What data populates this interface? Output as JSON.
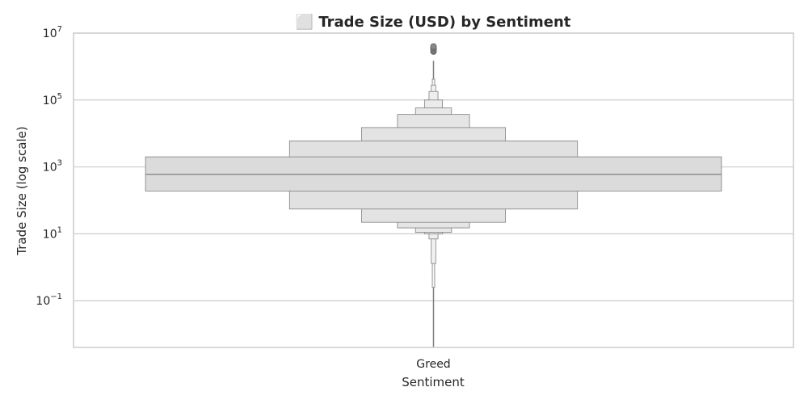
{
  "chart_data": {
    "type": "boxen",
    "title": "⬜ Trade Size (USD) by Sentiment",
    "xlabel": "Sentiment",
    "ylabel": "Trade Size (log scale)",
    "yscale": "log",
    "ylim": [
      0.004,
      10000000
    ],
    "yticks": [
      {
        "value": 0.1,
        "base": "10",
        "exp": "−1"
      },
      {
        "value": 10,
        "base": "10",
        "exp": "1"
      },
      {
        "value": 1000,
        "base": "10",
        "exp": "3"
      },
      {
        "value": 100000,
        "base": "10",
        "exp": "5"
      },
      {
        "value": 10000000,
        "base": "10",
        "exp": "7"
      }
    ],
    "grid": true,
    "categories": [
      "Greed"
    ],
    "series": [
      {
        "category": "Greed",
        "median": 600,
        "boxes": [
          {
            "lo": 190,
            "hi": 2000,
            "width": 0.8,
            "fill": "#dbdbdb"
          },
          {
            "lo": 55,
            "hi": 6000,
            "width": 0.4,
            "fill": "#e1e1e1"
          },
          {
            "lo": 22,
            "hi": 15000,
            "width": 0.2,
            "fill": "#e3e3e3"
          },
          {
            "lo": 15,
            "hi": 37000,
            "width": 0.1,
            "fill": "#e5e5e5"
          },
          {
            "lo": 11,
            "hi": 58000,
            "width": 0.05,
            "fill": "#e8e8e8"
          },
          {
            "lo": 10,
            "hi": 100000,
            "width": 0.025,
            "fill": "#ebebeb"
          },
          {
            "lo": 7,
            "hi": 180000,
            "width": 0.0125,
            "fill": "#eeeeee"
          },
          {
            "lo": 1.3,
            "hi": 280000,
            "width": 0.00625,
            "fill": "#f1f1f1"
          },
          {
            "lo": 0.25,
            "hi": 420000,
            "width": 0.003,
            "fill": "#f4f4f4"
          }
        ],
        "whisker": {
          "lo": 0.004,
          "hi": 1500000
        },
        "outliers": [
          2800000,
          3000000,
          3200000,
          3400000,
          3600000,
          3800000,
          4000000
        ]
      }
    ]
  }
}
